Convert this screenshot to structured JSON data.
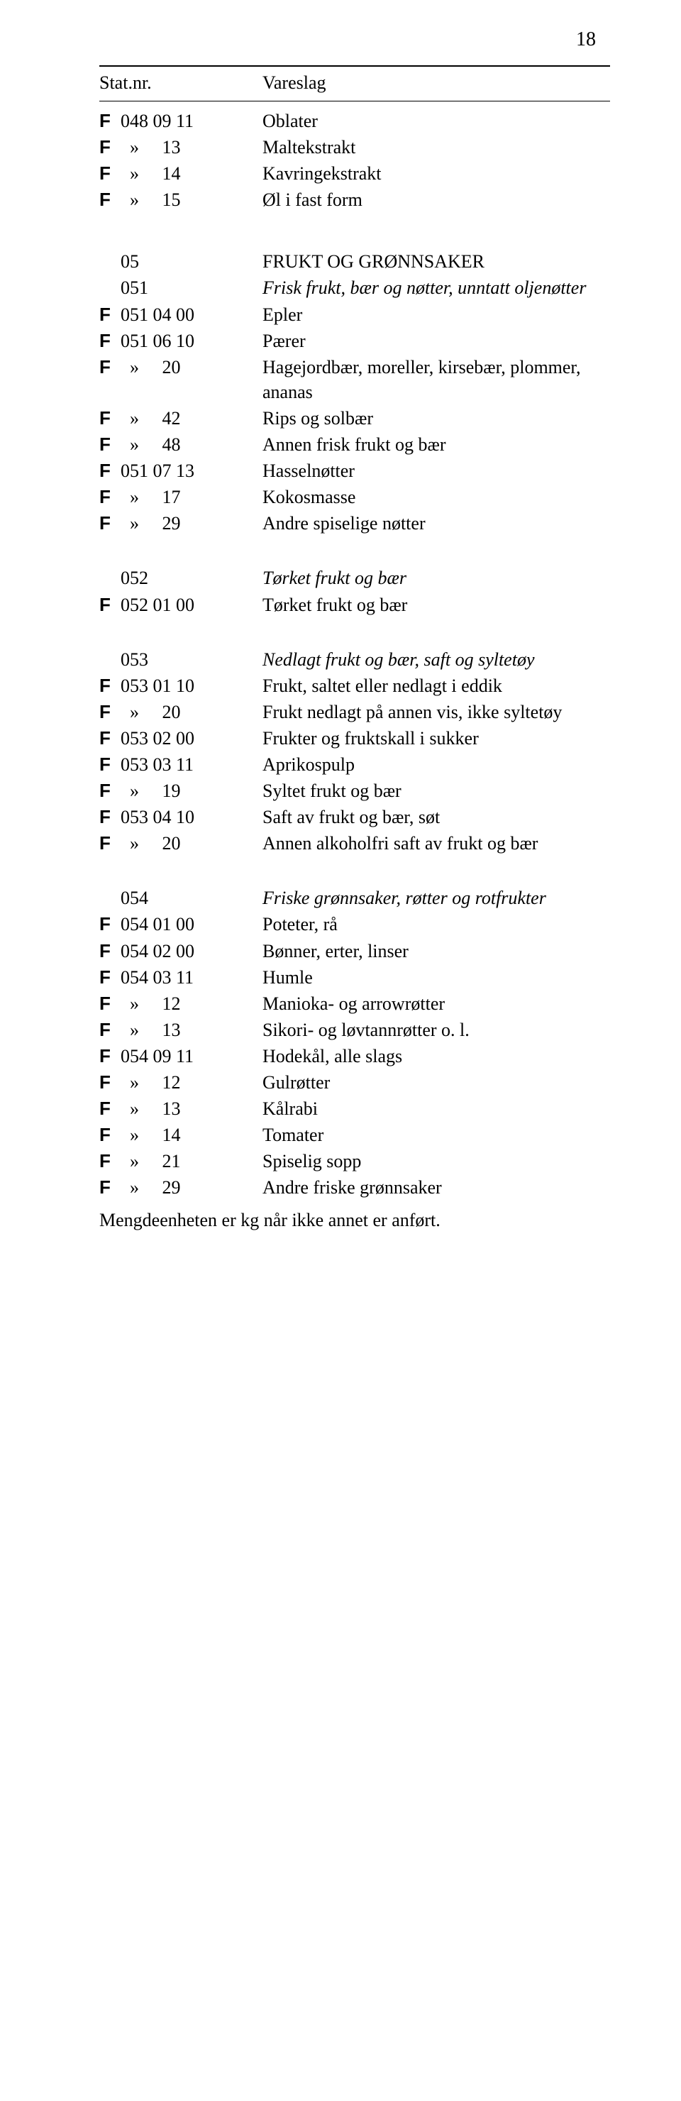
{
  "page_number": "18",
  "header": {
    "stat": "Stat.nr.",
    "vare": "Vareslag"
  },
  "block1": [
    {
      "f": "F",
      "code": "048 09 11",
      "desc": "Oblater"
    },
    {
      "f": "F",
      "code": "  »     13",
      "desc": "Maltekstrakt"
    },
    {
      "f": "F",
      "code": "  »     14",
      "desc": "Kavringekstrakt"
    },
    {
      "f": "F",
      "code": "  »     15",
      "desc": "Øl i fast form"
    }
  ],
  "block2_head": [
    {
      "f": "",
      "code": "05",
      "desc": "FRUKT OG GRØNNSAKER",
      "caps": true
    },
    {
      "f": "",
      "code": "051",
      "desc": "Frisk frukt, bær og nøtter, unntatt oljenøtter",
      "italic": true
    }
  ],
  "block2": [
    {
      "f": "F",
      "code": "051 04 00",
      "desc": "Epler"
    },
    {
      "f": "F",
      "code": "051 06 10",
      "desc": "Pærer"
    },
    {
      "f": "F",
      "code": "  »     20",
      "desc": "Hagejordbær, moreller, kirsebær, plommer, ananas"
    },
    {
      "f": "F",
      "code": "  »     42",
      "desc": "Rips og solbær"
    },
    {
      "f": "F",
      "code": "  »     48",
      "desc": "Annen frisk frukt og bær"
    },
    {
      "f": "F",
      "code": "051 07 13",
      "desc": "Hasselnøtter"
    },
    {
      "f": "F",
      "code": "  »     17",
      "desc": "Kokosmasse"
    },
    {
      "f": "F",
      "code": "  »     29",
      "desc": "Andre spiselige nøtter"
    }
  ],
  "block3_head": [
    {
      "f": "",
      "code": "052",
      "desc": "Tørket frukt og bær",
      "italic": true
    }
  ],
  "block3": [
    {
      "f": "F",
      "code": "052 01 00",
      "desc": "Tørket frukt og bær"
    }
  ],
  "block4_head": [
    {
      "f": "",
      "code": "053",
      "desc": "Nedlagt frukt og bær, saft og syltetøy",
      "italic": true
    }
  ],
  "block4": [
    {
      "f": "F",
      "code": "053 01 10",
      "desc": "Frukt, saltet eller nedlagt i eddik"
    },
    {
      "f": "F",
      "code": "  »     20",
      "desc": "Frukt nedlagt på annen vis, ikke syltetøy"
    },
    {
      "f": "F",
      "code": "053 02 00",
      "desc": "Frukter og fruktskall i sukker"
    },
    {
      "f": "F",
      "code": "053 03 11",
      "desc": "Aprikospulp"
    },
    {
      "f": "F",
      "code": "  »     19",
      "desc": "Syltet frukt og bær"
    },
    {
      "f": "F",
      "code": "053 04 10",
      "desc": "Saft av frukt og bær, søt"
    },
    {
      "f": "F",
      "code": "  »     20",
      "desc": "Annen alkoholfri saft av frukt og bær"
    }
  ],
  "block5_head": [
    {
      "f": "",
      "code": "054",
      "desc": "Friske grønnsaker, røtter og rotfrukter",
      "italic": true
    }
  ],
  "block5": [
    {
      "f": "F",
      "code": "054 01 00",
      "desc": "Poteter, rå"
    },
    {
      "f": "F",
      "code": "054 02 00",
      "desc": "Bønner, erter, linser"
    },
    {
      "f": "F",
      "code": "054 03 11",
      "desc": "Humle"
    },
    {
      "f": "F",
      "code": "  »     12",
      "desc": "Manioka- og arrowrøtter"
    },
    {
      "f": "F",
      "code": "  »     13",
      "desc": "Sikori- og løvtannrøtter o. l."
    },
    {
      "f": "F",
      "code": "054 09 11",
      "desc": "Hodekål, alle slags"
    },
    {
      "f": "F",
      "code": "  »     12",
      "desc": "Gulrøtter"
    },
    {
      "f": "F",
      "code": "  »     13",
      "desc": "Kålrabi"
    },
    {
      "f": "F",
      "code": "  »     14",
      "desc": "Tomater"
    },
    {
      "f": "F",
      "code": "  »     21",
      "desc": "Spiselig sopp"
    },
    {
      "f": "F",
      "code": "  »     29",
      "desc": "Andre friske grønnsaker"
    }
  ],
  "footnote": "Mengdeenheten er kg når ikke annet er anført."
}
